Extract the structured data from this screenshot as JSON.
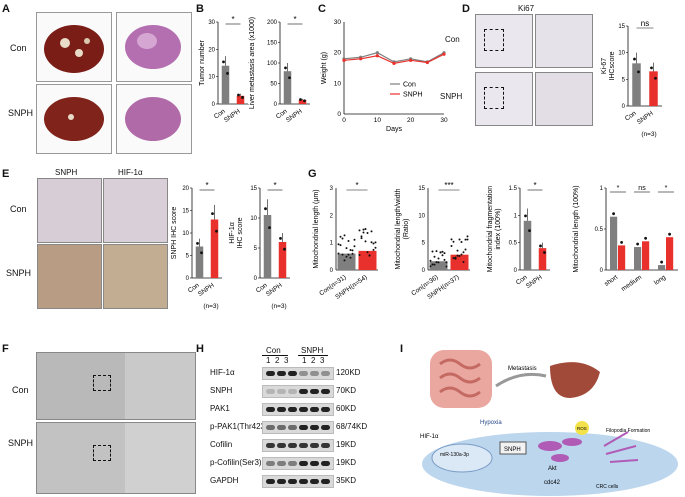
{
  "panels": {
    "A": "A",
    "B": "B",
    "C": "C",
    "D": "D",
    "E": "E",
    "F": "F",
    "G": "G",
    "H": "H",
    "I": "I"
  },
  "groups": {
    "con": "Con",
    "snph": "SNPH"
  },
  "b": {
    "chart_data": [
      {
        "type": "bar",
        "ylabel": "Tumor number",
        "categories": [
          "Con",
          "SNPH"
        ],
        "values": [
          14,
          3
        ],
        "ylim": [
          0,
          30
        ],
        "yticks": [
          0,
          10,
          20,
          30
        ],
        "sig": "*"
      },
      {
        "type": "bar",
        "ylabel": "Liver metastasis area (x1000)",
        "categories": [
          "Con",
          "SNPH"
        ],
        "values": [
          80,
          10
        ],
        "ylim": [
          0,
          200
        ],
        "yticks": [
          0,
          50,
          100,
          150,
          200
        ],
        "sig": "*"
      }
    ]
  },
  "c": {
    "chart_data": {
      "type": "line",
      "ylabel": "Weight (g)",
      "xlabel": "Days",
      "x": [
        0,
        5,
        10,
        15,
        20,
        25,
        30
      ],
      "ylim": [
        0,
        30
      ],
      "xlim": [
        0,
        30
      ],
      "yticks": [
        0,
        10,
        20,
        30
      ],
      "xticks": [
        0,
        10,
        20,
        30
      ],
      "series": [
        {
          "name": "Con",
          "values": [
            18,
            18.5,
            20,
            17,
            18,
            17,
            20
          ]
        },
        {
          "name": "SNPH",
          "values": [
            17.5,
            18,
            19,
            16.5,
            17.5,
            16.8,
            19.5
          ]
        }
      ]
    }
  },
  "d": {
    "stain": "Ki67",
    "chart_data": {
      "type": "bar",
      "ylabel": "Ki-67",
      "ylabel_sub": "(Nuc)",
      "ylabel2": "IHCscore",
      "categories": [
        "Con",
        "SNPH"
      ],
      "values": [
        8,
        6.5
      ],
      "ylim": [
        0,
        15
      ],
      "yticks": [
        0,
        5,
        10,
        15
      ],
      "sig": "ns",
      "n": "(n=3)"
    }
  },
  "e": {
    "stains": [
      "SNPH",
      "HIF-1α"
    ],
    "chart_data": [
      {
        "type": "bar",
        "ylabel": "SNPH IHC score",
        "categories": [
          "Con",
          "SNPH"
        ],
        "values": [
          7,
          13
        ],
        "ylim": [
          0,
          20
        ],
        "yticks": [
          0,
          5,
          10,
          15,
          20
        ],
        "sig": "*",
        "n": "(n=3)"
      },
      {
        "type": "bar",
        "ylabel": "HIF-1α",
        "ylabel_sub": "(Nuc)",
        "ylabel2": "IHC score",
        "categories": [
          "Con",
          "SNPH"
        ],
        "values": [
          10.5,
          6
        ],
        "ylim": [
          0,
          15
        ],
        "yticks": [
          0,
          5,
          10,
          15
        ],
        "sig": "*",
        "n": "(n=3)"
      }
    ]
  },
  "g": {
    "chart_data": [
      {
        "type": "scatter",
        "ylabel": "Mitochondrial length (μm)",
        "categories": [
          "Con(n=31)",
          "SNPH(n=54)"
        ],
        "values": [
          0.6,
          0.7
        ],
        "ylim": [
          0,
          3
        ],
        "yticks": [
          0,
          1,
          2,
          3
        ],
        "sig": "*"
      },
      {
        "type": "scatter",
        "ylabel": "Mitochondrial length/width",
        "ylabel2": "(Ratio)",
        "categories": [
          "Con(n=36)",
          "SNPH(n=37)"
        ],
        "values": [
          1.6,
          2.8
        ],
        "ylim": [
          0,
          15
        ],
        "yticks": [
          0,
          5,
          10,
          15
        ],
        "sig": "***"
      },
      {
        "type": "bar",
        "ylabel": "Mitochondrial fragmentation",
        "ylabel2": "index (100%)",
        "categories": [
          "Con",
          "SNPH"
        ],
        "values": [
          0.9,
          0.4
        ],
        "ylim": [
          0,
          1.5
        ],
        "yticks": [
          0.0,
          0.5,
          1.0,
          1.5
        ],
        "sig": "*"
      },
      {
        "type": "bar",
        "ylabel": "Mitochondrial length (100%)",
        "categories": [
          "short",
          "medium",
          "long"
        ],
        "series": [
          {
            "name": "Con",
            "values": [
              0.65,
              0.28,
              0.06
            ]
          },
          {
            "name": "SNPH",
            "values": [
              0.3,
              0.35,
              0.4
            ]
          }
        ],
        "ylim": [
          0,
          1.0
        ],
        "yticks": [
          0.0,
          0.5,
          1.0
        ],
        "sigs": [
          "*",
          "ns",
          "*"
        ]
      }
    ]
  },
  "h": {
    "lanes": [
      "1",
      "2",
      "3",
      "1",
      "2",
      "3"
    ],
    "proteins": [
      {
        "name": "HIF-1α",
        "kd": "120KD"
      },
      {
        "name": "SNPH",
        "kd": "70KD"
      },
      {
        "name": "PAK1",
        "kd": "60KD"
      },
      {
        "name": "p-PAK1(Thr423)",
        "kd": "68/74KD"
      },
      {
        "name": "Cofilin",
        "kd": "19KD"
      },
      {
        "name": "p-Cofilin(Ser3)",
        "kd": "19KD"
      },
      {
        "name": "GAPDH",
        "kd": "35KD"
      }
    ]
  },
  "i": {
    "metastasis": "Metastasis",
    "hypoxia": "Hypoxia",
    "hif": "HIF-1α",
    "mir": "miR-130a-3p",
    "snph": "SNPH",
    "ros": "ROS",
    "akt": "Akt",
    "cdc42": "cdc42",
    "filopodia": "Filopodia Formation",
    "crc": "CRC cells"
  },
  "colors": {
    "con": "#7f7f7f",
    "snph": "#e8302c",
    "dark": "#222222"
  }
}
